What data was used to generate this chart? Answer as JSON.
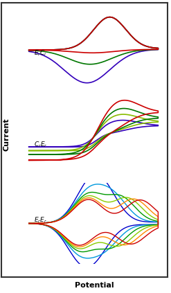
{
  "xlabel": "Potential",
  "ylabel": "Current",
  "panel_labels": [
    "$E_rC_i$",
    "$C_rE_r$",
    "$E_rE_r$"
  ],
  "colors_top": [
    "#3300bb",
    "#007700",
    "#cc0000"
  ],
  "colors_mid": [
    "#3300bb",
    "#88bb00",
    "#007700",
    "#cc0000"
  ],
  "colors_bot": [
    "#0000cc",
    "#0099dd",
    "#009900",
    "#88cc00",
    "#ff8800",
    "#cc0000"
  ],
  "background": "#ffffff"
}
